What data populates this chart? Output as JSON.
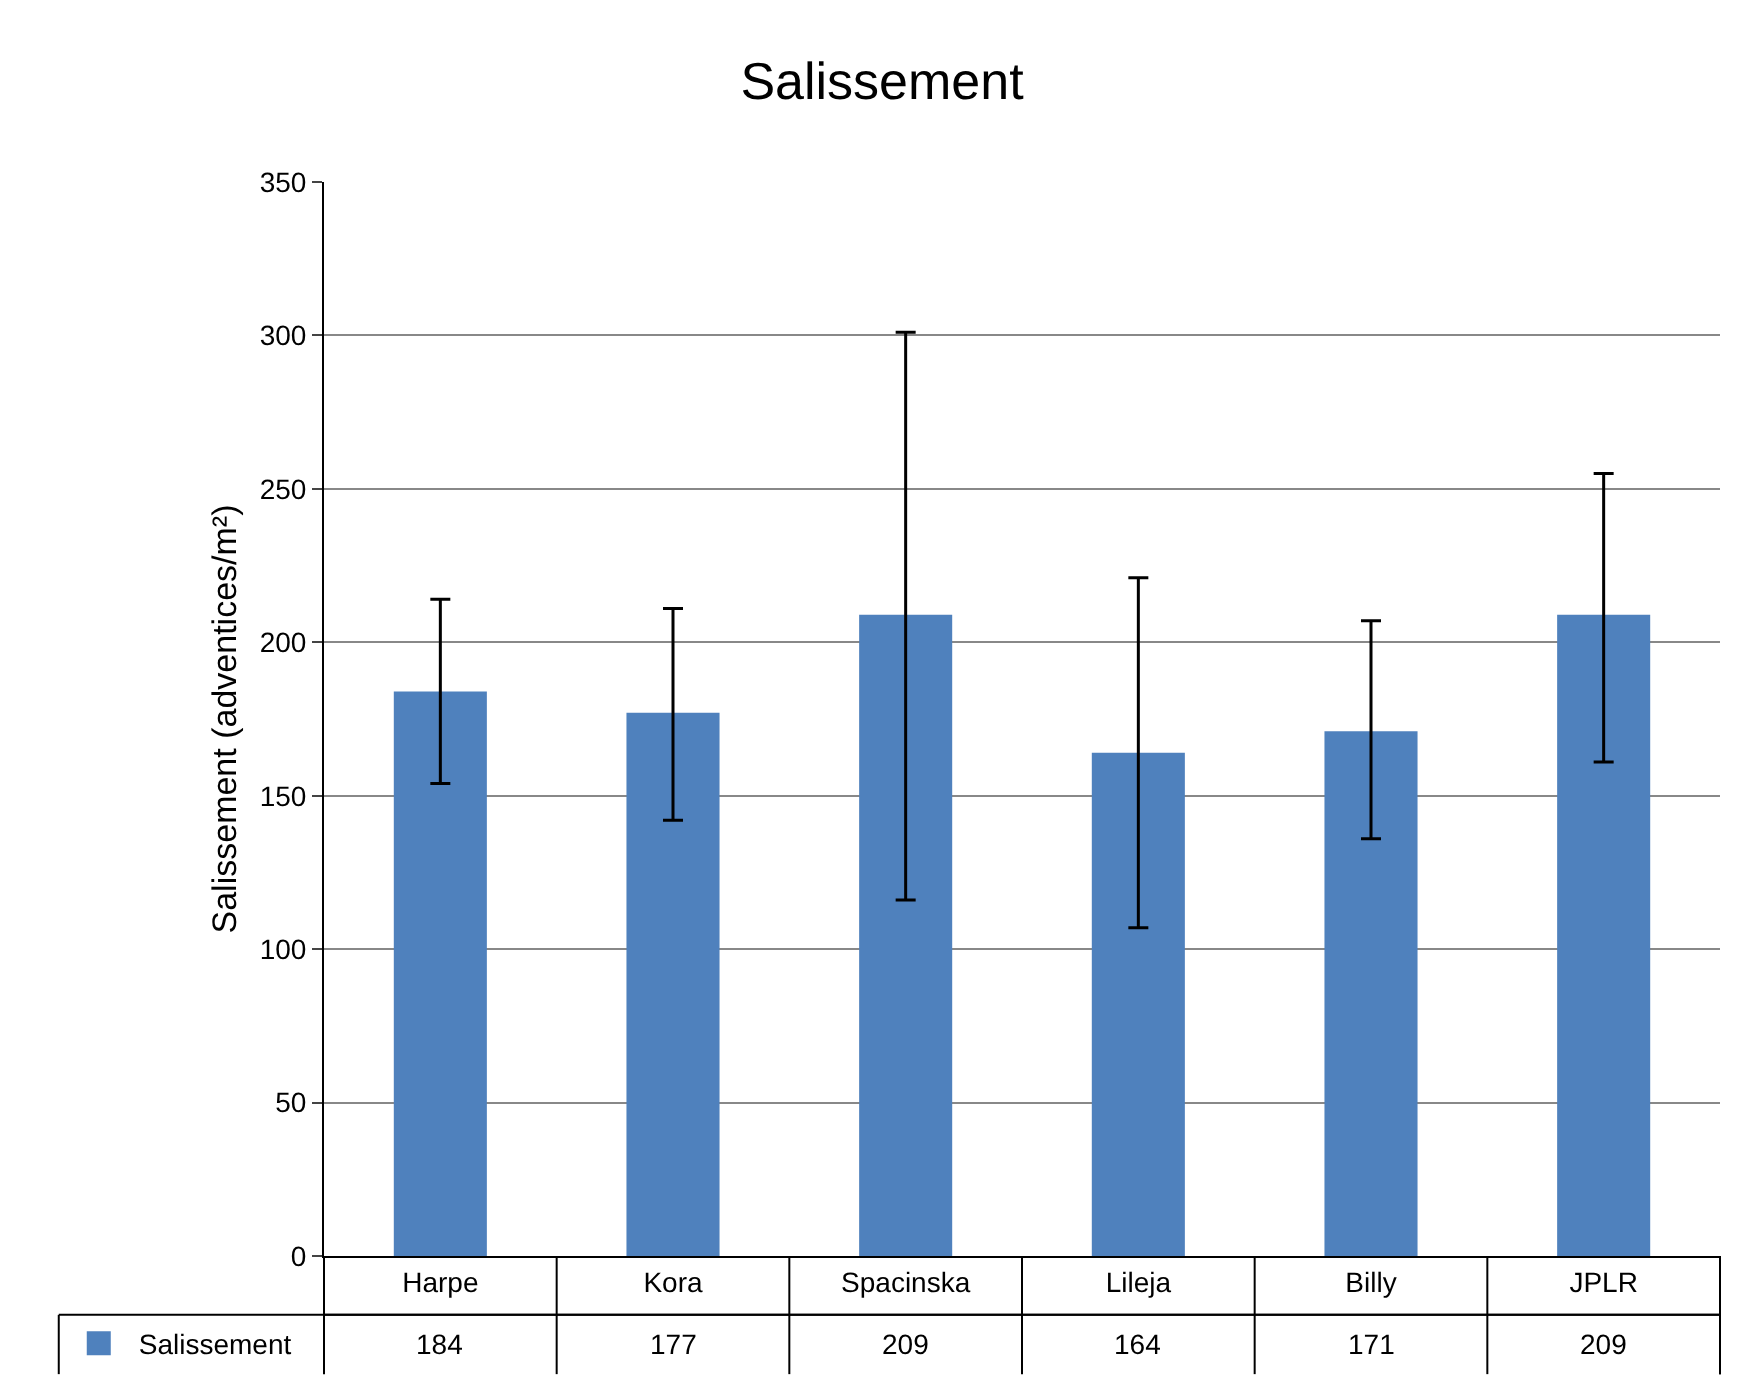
{
  "chart_data": {
    "type": "bar",
    "title": "Salissement",
    "ylabel": "Salissement (adventices/m²)",
    "categories": [
      "Harpe",
      "Kora",
      "Spacinska",
      "Lileja",
      "Billy",
      "JPLR"
    ],
    "series": [
      {
        "name": "Salissement",
        "color": "#4f81bd",
        "values": [
          184,
          177,
          209,
          164,
          171,
          209
        ],
        "errors": [
          [
            154,
            214
          ],
          [
            142,
            211
          ],
          [
            116,
            301
          ],
          [
            107,
            221
          ],
          [
            136,
            207
          ],
          [
            161,
            255
          ]
        ]
      }
    ],
    "ylim": [
      0,
      350
    ],
    "yticks": [
      0,
      50,
      100,
      150,
      200,
      250,
      300,
      350
    ],
    "grid": "y",
    "legend": "bottom left",
    "data_labels": true
  }
}
